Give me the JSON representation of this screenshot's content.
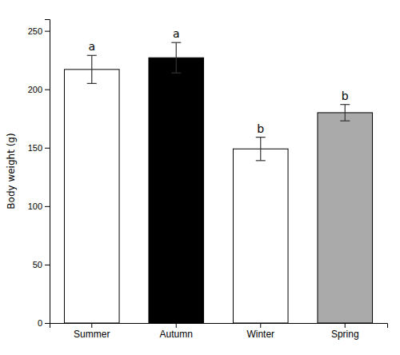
{
  "chart_data": {
    "type": "bar",
    "categories": [
      "Summer",
      "Autumn",
      "Winter",
      "Spring"
    ],
    "values": [
      217,
      227,
      149,
      180
    ],
    "errors": [
      12,
      13,
      10,
      7
    ],
    "annotations": [
      "a",
      "a",
      "b",
      "b"
    ],
    "colors": [
      "white",
      "black",
      "white",
      "#aaaaaa"
    ],
    "ylabel": "Body weight (g)",
    "ylim": [
      0,
      260
    ],
    "yticks": [
      0,
      50,
      100,
      150,
      200,
      250
    ],
    "grid": false
  }
}
